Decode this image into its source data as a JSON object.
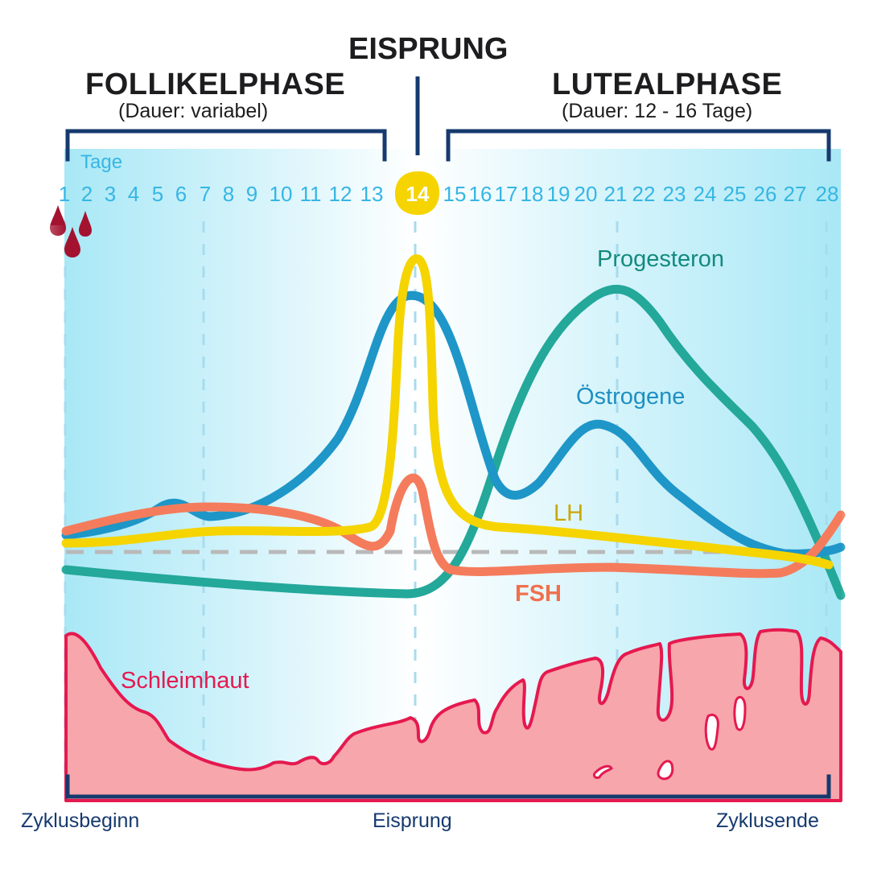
{
  "header": {
    "follikel_title": "FOLLIKELPHASE",
    "follikel_sub": "(Dauer: variabel)",
    "eisprung_title": "EISPRUNG",
    "luteal_title": "LUTEALPHASE",
    "luteal_sub": "(Dauer: 12 - 16 Tage)"
  },
  "days": {
    "label": "Tage",
    "numbers": [
      "1",
      "2",
      "3",
      "4",
      "5",
      "6",
      "7",
      "8",
      "9",
      "10",
      "11",
      "12",
      "13",
      "14",
      "15",
      "16",
      "17",
      "18",
      "19",
      "20",
      "21",
      "22",
      "23",
      "24",
      "25",
      "26",
      "27",
      "28"
    ],
    "highlight": "14"
  },
  "hormones": {
    "progesteron": "Progesteron",
    "oestrogene": "Östrogene",
    "lh": "LH",
    "fsh": "FSH"
  },
  "mucosa_label": "Schleimhaut",
  "bottom": {
    "start": "Zyklusbeginn",
    "middle": "Eisprung",
    "end": "Zyklusende"
  },
  "colors": {
    "navy": "#163a6e",
    "tage_blue": "#36b6e4",
    "oestrogene": "#1e96c8",
    "progesteron": "#23a89a",
    "lh": "#f5d400",
    "fsh": "#f47c5c",
    "schleimhaut": "#e5194f",
    "schleimhaut_fill": "#f7a6ac",
    "blood": "#a3122f"
  }
}
